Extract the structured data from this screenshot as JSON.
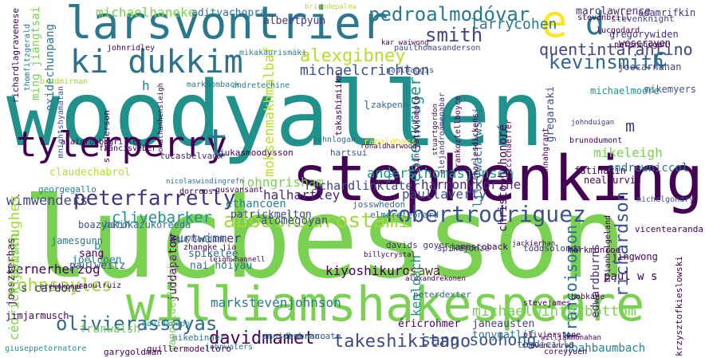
{
  "words": [
    {
      "text": "woodyallen",
      "color": "#21918c"
    },
    {
      "text": "lucbesson",
      "color": "#7ad151"
    },
    {
      "text": "stephenking",
      "color": "#440154"
    },
    {
      "text": "williamshakespeare",
      "color": "#7ad151"
    },
    {
      "text": "larsvontrier",
      "color": "#2a788e"
    },
    {
      "text": "ki dukkim",
      "color": "#2c728e"
    },
    {
      "text": "tylerperry",
      "color": "#440154"
    },
    {
      "text": "robertrodriguez",
      "color": "#3b528b"
    },
    {
      "text": "peterfarrelly",
      "color": "#46327e"
    },
    {
      "text": "abbaskiarostami",
      "color": "#a0da39"
    },
    {
      "text": "davidmamet",
      "color": "#440154"
    },
    {
      "text": "takeshikitano",
      "color": "#3e4989"
    },
    {
      "text": "olivierassayas",
      "color": "#31688e"
    },
    {
      "text": "johnsayles",
      "color": "#a0da39"
    },
    {
      "text": "e",
      "color": "#fde725"
    },
    {
      "text": "d",
      "color": "#2a788e"
    },
    {
      "text": "t",
      "color": "#2a788e"
    },
    {
      "text": "smith",
      "color": "#414487"
    },
    {
      "text": "pedroalmodóvar",
      "color": "#2a788e"
    },
    {
      "text": "alexgibney",
      "color": "#b5de2b"
    },
    {
      "text": "kevinsmith",
      "color": "#31688e"
    },
    {
      "text": "sang soohong",
      "color": "#3b528b"
    },
    {
      "text": "michaelhaneke",
      "color": "#7ad151"
    },
    {
      "text": "michaelcrichton",
      "color": "#3b528b"
    },
    {
      "text": "ehrenkruger",
      "color": "#21918c"
    },
    {
      "text": "quentintarantino",
      "color": "#414487"
    },
    {
      "text": "larrycohen",
      "color": "#2a788e"
    },
    {
      "text": "richardson",
      "color": "#3b528b"
    },
    {
      "text": "françoisozon",
      "color": "#2c728e"
    },
    {
      "text": "andersthomasjensen",
      "color": "#21918c"
    },
    {
      "text": "harmonykorine",
      "color": "#472d7b"
    },
    {
      "text": "paullaverty",
      "color": "#3b528b"
    },
    {
      "text": "mikeleigh",
      "color": "#7ad151"
    },
    {
      "text": "halhartley",
      "color": "#482878"
    },
    {
      "text": "johngrisham",
      "color": "#7ad151"
    },
    {
      "text": "wimwenders",
      "color": "#414487"
    },
    {
      "text": "clivebarker",
      "color": "#21918c"
    },
    {
      "text": "kurtwimmer",
      "color": "#46327e"
    },
    {
      "text": "johnhughes",
      "color": "#a0da39"
    },
    {
      "text": "wernerherzog",
      "color": "#440154"
    },
    {
      "text": "michaelwinterbottom",
      "color": "#7ad151"
    },
    {
      "text": "markstevenjohnson",
      "color": "#2a788e"
    },
    {
      "text": "kiyoshikurosawa",
      "color": "#440154"
    },
    {
      "text": "edwardburns",
      "color": "#482878"
    },
    {
      "text": "c",
      "color": "#2c728e"
    },
    {
      "text": "m",
      "color": "#414487"
    },
    {
      "text": "mohsenmakhmalbaf",
      "color": "#b5de2b"
    },
    {
      "text": "richardlinklater",
      "color": "#414487"
    },
    {
      "text": "ethancoen",
      "color": "#26828e"
    },
    {
      "text": "atomegoyan",
      "color": "#3b528b"
    },
    {
      "text": "patrickmelton",
      "color": "#414487"
    },
    {
      "text": "spikelee",
      "color": "#31688e"
    },
    {
      "text": "nai hoiyau",
      "color": "#2a788e"
    },
    {
      "text": "juddapatow",
      "color": "#440154"
    },
    {
      "text": "sang",
      "color": "#440154"
    },
    {
      "text": "paulweitz",
      "color": "#3b528b"
    },
    {
      "text": "joelcoen",
      "color": "#26828e"
    },
    {
      "text": "joeszterhas",
      "color": "#440154"
    },
    {
      "text": "cédricklapisch",
      "color": "#7ad151"
    },
    {
      "text": "s cardone",
      "color": "#46327e"
    },
    {
      "text": "jimjarmusch",
      "color": "#440154"
    },
    {
      "text": "franwalsh",
      "color": "#6ece58"
    },
    {
      "text": "manoeldeoliveira",
      "color": "#7ad151"
    },
    {
      "text": "janeausten",
      "color": "#414487"
    },
    {
      "text": "éricrohmer",
      "color": "#440154"
    },
    {
      "text": "tonygatlif",
      "color": "#2a788e"
    },
    {
      "text": "kenloach",
      "color": "#21918c"
    },
    {
      "text": "noahbaumbach",
      "color": "#26828e"
    },
    {
      "text": "tomdicillo",
      "color": "#2c728e"
    },
    {
      "text": "paul w s",
      "color": "#440154"
    },
    {
      "text": "jingwong",
      "color": "#440154"
    },
    {
      "text": "andrewniccol",
      "color": "#2a788e"
    },
    {
      "text": "marclawrence",
      "color": "#482878"
    },
    {
      "text": "adamrifkin",
      "color": "#46327e"
    },
    {
      "text": "gregorywiden",
      "color": "#46327e"
    },
    {
      "text": "wescraven",
      "color": "#440154"
    },
    {
      "text": "joecarnahan",
      "color": "#414487"
    },
    {
      "text": "mikemyers",
      "color": "#3b528b"
    },
    {
      "text": "michaelmoore",
      "color": "#21918c"
    },
    {
      "text": "lillywachowski",
      "color": "#2a788e"
    },
    {
      "text": "christophehonoré",
      "color": "#440154"
    },
    {
      "text": "gregaraki",
      "color": "#3b528b"
    },
    {
      "text": "fatihakin",
      "color": "#440154"
    },
    {
      "text": "nealpurvis",
      "color": "#440154"
    },
    {
      "text": "adityachopra",
      "color": "#2c728e"
    },
    {
      "text": "albertpyun",
      "color": "#46327e"
    },
    {
      "text": "ming jiangtsai",
      "color": "#7ad151"
    },
    {
      "text": "oxidechunpang",
      "color": "#2a788e"
    },
    {
      "text": "claudechabrol",
      "color": "#b5de2b"
    },
    {
      "text": "georgegallo",
      "color": "#26828e"
    },
    {
      "text": "boazyakin",
      "color": "#3b528b"
    },
    {
      "text": "hirokazukoreeda",
      "color": "#2c728e"
    },
    {
      "text": "jamesgunn",
      "color": "#2a788e"
    },
    {
      "text": "guymaddin",
      "color": "#2a788e"
    },
    {
      "text": "jamestoback",
      "color": "#440154"
    },
    {
      "text": "davids goyer",
      "color": "#46327e"
    },
    {
      "text": "spikejonze",
      "color": "#46327e"
    },
    {
      "text": "toddsolondz",
      "color": "#46327e"
    },
    {
      "text": "markmonroe",
      "color": "#440154"
    },
    {
      "text": "vicentearanda",
      "color": "#440154"
    },
    {
      "text": "johnbrancato",
      "color": "#3b528b"
    },
    {
      "text": "jukasmoodysson",
      "color": "#440154"
    },
    {
      "text": "lucasbelvaux",
      "color": "#482878"
    },
    {
      "text": "francisveber",
      "color": "#440154"
    },
    {
      "text": "johnlogan",
      "color": "#31688e"
    },
    {
      "text": "mikebinder",
      "color": "#2c728e"
    },
    {
      "text": "jamesdemonaco",
      "color": "#31688e"
    },
    {
      "text": "johnwaters",
      "color": "#2a788e"
    },
    {
      "text": "garygoldman",
      "color": "#440154"
    },
    {
      "text": "guillermodeltoro",
      "color": "#440154"
    },
    {
      "text": "giuseppetornatore",
      "color": "#21918c"
    },
    {
      "text": "stevenknight",
      "color": "#3e4989"
    },
    {
      "text": "lucgodard",
      "color": "#440154"
    },
    {
      "text": "petermorgan",
      "color": "#440154"
    },
    {
      "text": "paulhaggis",
      "color": "#3b528b"
    },
    {
      "text": "paulthomasanderson",
      "color": "#414487"
    },
    {
      "text": "olivierstone",
      "color": "#440154"
    },
    {
      "text": "coreyyuen",
      "color": "#440154"
    },
    {
      "text": "brunodumont",
      "color": "#440154"
    },
    {
      "text": "michelgondry",
      "color": "#3b528b"
    },
    {
      "text": "peterdexter",
      "color": "#31688e"
    },
    {
      "text": "hartsui",
      "color": "#3b528b"
    },
    {
      "text": "elmoreleonard",
      "color": "#31688e"
    },
    {
      "text": "josswhedon",
      "color": "#31688e"
    },
    {
      "text": "ranaldbass",
      "color": "#fde725"
    },
    {
      "text": "takashimiike",
      "color": "#440154"
    },
    {
      "text": "zakpenn",
      "color": "#31688e"
    },
    {
      "text": "alejandroamenabar",
      "color": "#46327e"
    },
    {
      "text": "frankoztellboyce",
      "color": "#440154"
    },
    {
      "text": "charlesdickens",
      "color": "#440154"
    },
    {
      "text": "richardlagravenese",
      "color": "#440154"
    },
    {
      "text": "thomfitzgerald",
      "color": "#2a788e"
    },
    {
      "text": "mnightshyamalan",
      "color": "#3b528b"
    },
    {
      "text": "markbomback",
      "color": "#2a788e"
    },
    {
      "text": "andretechine",
      "color": "#2a788e"
    },
    {
      "text": "mikakaurismäki",
      "color": "#26828e"
    },
    {
      "text": "briandepalma",
      "color": "#b5de2b"
    },
    {
      "text": "johnduigan",
      "color": "#46327e"
    },
    {
      "text": "alainrobbegrillet",
      "color": "#440154"
    },
    {
      "text": "shin'yatsukamoto",
      "color": "#440154"
    },
    {
      "text": "ericschaeffer",
      "color": "#440154"
    },
    {
      "text": "susannahgrant",
      "color": "#440154"
    },
    {
      "text": "stevenbrill",
      "color": "#440154"
    },
    {
      "text": "johnridley",
      "color": "#440154"
    },
    {
      "text": "bradmirman",
      "color": "#a0da39"
    },
    {
      "text": "stuartgordon",
      "color": "#440154"
    },
    {
      "text": "h",
      "color": "#2a788e"
    },
    {
      "text": "l",
      "color": "#2a788e"
    },
    {
      "text": "b",
      "color": "#21918c"
    },
    {
      "text": "f",
      "color": "#21918c"
    },
    {
      "text": "s anderson",
      "color": "#440154"
    },
    {
      "text": "dorroos",
      "color": "#440154"
    },
    {
      "text": "gusvansant",
      "color": "#440154"
    },
    {
      "text": "raoulruiz",
      "color": "#440154"
    },
    {
      "text": "zhangke jia",
      "color": "#440154"
    },
    {
      "text": "leighwhannell",
      "color": "#440154"
    },
    {
      "text": "billycrystal",
      "color": "#440154"
    },
    {
      "text": "nicolaswindingrefn",
      "color": "#2a788e"
    },
    {
      "text": "tonyjjroy",
      "color": "#a0da39"
    },
    {
      "text": "jackierhan",
      "color": "#440154"
    },
    {
      "text": "stevejames",
      "color": "#440154"
    },
    {
      "text": "bobkane",
      "color": "#440154"
    },
    {
      "text": "krzysztofkieslowski",
      "color": "#440154"
    },
    {
      "text": "brianhelgeland",
      "color": "#440154"
    },
    {
      "text": "ronaldharwood",
      "color": "#440154"
    },
    {
      "text": "kar waiwong",
      "color": "#440154"
    },
    {
      "text": "jonathanhensleigh",
      "color": "#440154"
    },
    {
      "text": "davidkoepp",
      "color": "#21918c"
    },
    {
      "text": "erekokonnen",
      "color": "#440154"
    },
    {
      "text": "stevenconrad",
      "color": "#440154"
    },
    {
      "text": "williammonahan",
      "color": "#440154"
    },
    {
      "text": "alexandrekonen",
      "color": "#440154"
    }
  ]
}
